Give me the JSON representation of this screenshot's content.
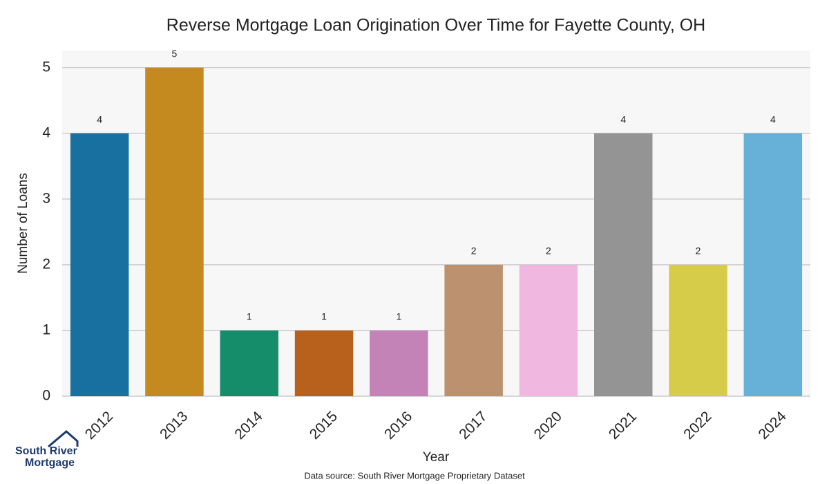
{
  "chart_data": {
    "type": "bar",
    "title": "Reverse Mortgage Loan Origination Over Time for Fayette County, OH",
    "x_label": "Year",
    "y_label": "Number of Loans",
    "categories": [
      "2012",
      "2013",
      "2014",
      "2015",
      "2016",
      "2017",
      "2020",
      "2021",
      "2022",
      "2024"
    ],
    "values": [
      4,
      5,
      1,
      1,
      1,
      2,
      2,
      4,
      2,
      4
    ],
    "colors": [
      "#1770a0",
      "#c48a20",
      "#168d6a",
      "#b8611c",
      "#c383b6",
      "#bb9170",
      "#f0b8e0",
      "#949494",
      "#d6cc4a",
      "#67b0d8"
    ],
    "ylim": [
      0,
      5.26
    ],
    "yticks": [
      0,
      1,
      2,
      3,
      4,
      5
    ],
    "grid": true,
    "source": "Data source: South River Mortgage Proprietary Dataset",
    "logo": [
      "South River",
      "Mortgage"
    ]
  }
}
